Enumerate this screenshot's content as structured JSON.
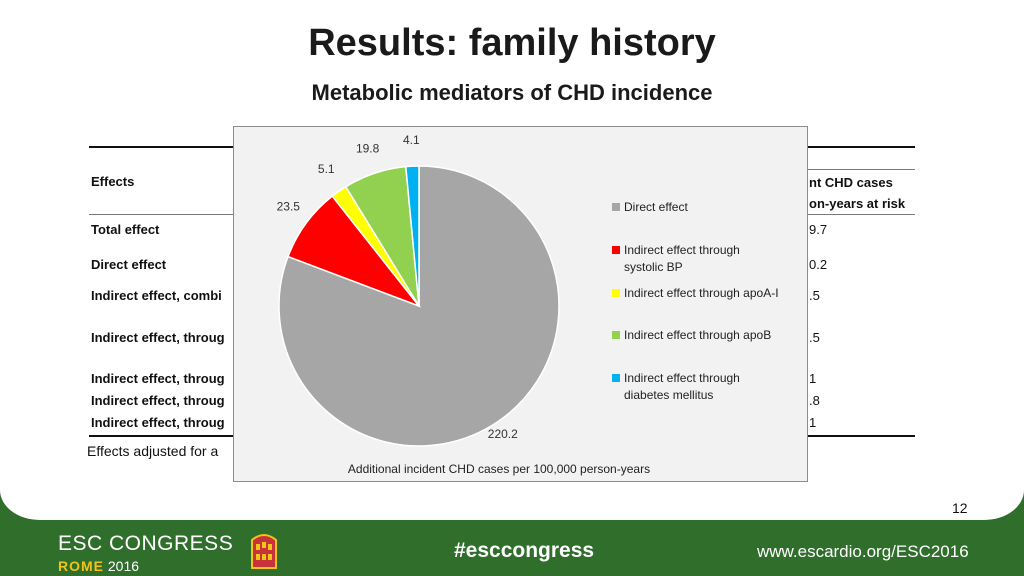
{
  "slide": {
    "title": "Results: family history",
    "subtitle": "Metabolic mediators of CHD incidence",
    "page_number": "12",
    "footnote": "Effects adjusted for a"
  },
  "table": {
    "header_left": "Effects",
    "header_right_1": "nt CHD cases",
    "header_right_2": "on-years at risk",
    "rows": [
      {
        "label": "Total effect",
        "value": "9.7"
      },
      {
        "label": "Direct effect",
        "value": "0.2"
      },
      {
        "label": "Indirect effect, combi",
        "value": ".5"
      },
      {
        "label": "Indirect effect, throug",
        "value": ".5"
      },
      {
        "label": "Indirect effect, throug",
        "value": "1"
      },
      {
        "label": "Indirect effect, throug",
        "value": ".8"
      },
      {
        "label": "Indirect effect, throug",
        "value": "1"
      }
    ]
  },
  "chart_data": {
    "type": "pie",
    "title": "",
    "xlabel": "Additional incident CHD cases per 100,000 person-years",
    "start_angle_deg": 0,
    "direction": "clockwise",
    "legend_position": "right",
    "slices": [
      {
        "label": "Direct effect",
        "value": 220.2,
        "color": "#a6a6a6",
        "value_label": "220.2"
      },
      {
        "label": "Indirect effect through systolic BP",
        "value": 23.5,
        "color": "#ff0000",
        "value_label": "23.5"
      },
      {
        "label": "Indirect effect through apoA-I",
        "value": 5.1,
        "color": "#ffff00",
        "value_label": "5.1"
      },
      {
        "label": "Indirect effect through apoB",
        "value": 19.8,
        "color": "#92d050",
        "value_label": "19.8"
      },
      {
        "label": "Indirect effect through diabetes mellitus",
        "value": 4.1,
        "color": "#00b0f0",
        "value_label": "4.1"
      }
    ],
    "legend": [
      {
        "line1": "Direct effect",
        "line2": ""
      },
      {
        "line1": "Indirect effect through",
        "line2": "systolic BP"
      },
      {
        "line1": "Indirect effect through apoA-I",
        "line2": ""
      },
      {
        "line1": "Indirect effect through apoB",
        "line2": ""
      },
      {
        "line1": "Indirect effect through",
        "line2": "diabetes mellitus"
      }
    ]
  },
  "footer": {
    "brand": "ESC CONGRESS",
    "city": "ROME",
    "year": "2016",
    "hashtag": "#esccongress",
    "website": "www.escardio.org/ESC2016"
  }
}
